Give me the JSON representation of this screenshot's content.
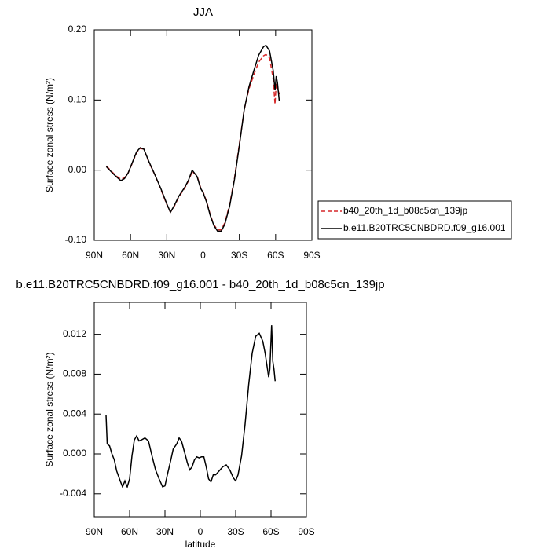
{
  "chart_data": [
    {
      "type": "line",
      "title": "JJA",
      "ylabel": "Surface zonal stress (N/m²)",
      "x": [
        80,
        75,
        72,
        68,
        65,
        62,
        58,
        55,
        52,
        49,
        45,
        40,
        35,
        30,
        27,
        24,
        20,
        15,
        12,
        9,
        5,
        2,
        0,
        -3,
        -6,
        -9,
        -12,
        -15,
        -18,
        -22,
        -26,
        -30,
        -34,
        -38,
        -42,
        -46,
        -50,
        -52,
        -55,
        -58,
        -59.5,
        -60.5,
        -61.5,
        -63
      ],
      "series": [
        {
          "name": "b40_20th_1d_b08c5cn_139jp",
          "color": "#d62728",
          "dash": true,
          "values": [
            0.006,
            -0.003,
            -0.008,
            -0.013,
            -0.011,
            -0.004,
            0.012,
            0.025,
            0.031,
            0.03,
            0.012,
            -0.006,
            -0.027,
            -0.049,
            -0.06,
            -0.052,
            -0.038,
            -0.025,
            -0.015,
            -0.002,
            -0.008,
            -0.025,
            -0.031,
            -0.045,
            -0.064,
            -0.078,
            -0.085,
            -0.085,
            -0.075,
            -0.049,
            -0.011,
            0.037,
            0.086,
            0.116,
            0.136,
            0.154,
            0.163,
            0.165,
            0.16,
            0.13,
            0.094,
            0.124,
            0.118,
            0.108
          ]
        },
        {
          "name": "b.e11.B20TRC5CNBDRD.f09_g16.001",
          "color": "#000000",
          "dash": false,
          "values": [
            0.005,
            -0.004,
            -0.009,
            -0.015,
            -0.012,
            -0.004,
            0.013,
            0.026,
            0.032,
            0.03,
            0.013,
            -0.006,
            -0.026,
            -0.048,
            -0.06,
            -0.051,
            -0.037,
            -0.024,
            -0.014,
            0.0,
            -0.009,
            -0.026,
            -0.032,
            -0.046,
            -0.065,
            -0.079,
            -0.087,
            -0.087,
            -0.077,
            -0.051,
            -0.013,
            0.035,
            0.086,
            0.119,
            0.142,
            0.164,
            0.176,
            0.178,
            0.17,
            0.142,
            0.114,
            0.134,
            0.125,
            0.099
          ]
        }
      ],
      "xlim": [
        90,
        -90
      ],
      "xticks": [
        {
          "value": 90,
          "label": "90N"
        },
        {
          "value": 60,
          "label": "60N"
        },
        {
          "value": 30,
          "label": "30N"
        },
        0,
        {
          "value": -30,
          "label": "30S"
        },
        {
          "value": -60,
          "label": "60S"
        },
        {
          "value": -90,
          "label": "90S"
        }
      ],
      "ylim": [
        -0.1,
        0.2
      ],
      "yticks": [
        {
          "value": 0.2,
          "label": "0.20"
        },
        {
          "value": 0.1,
          "label": "0.10"
        },
        {
          "value": 0,
          "label": "0.00"
        },
        {
          "value": -0.1,
          "label": "-0.10"
        }
      ],
      "legend": "outside-right"
    },
    {
      "type": "line",
      "title": "b.e11.B20TRC5CNBDRD.f09_g16.001 - b40_20th_1d_b08c5cn_139jp",
      "xlabel": "latitude",
      "ylabel": "Surface zonal stress (N/m²)",
      "x": [
        80,
        79,
        77,
        75,
        73,
        71,
        68,
        66,
        64,
        62,
        60,
        58,
        56,
        54,
        52,
        50,
        47,
        44,
        41,
        38,
        35,
        32,
        30,
        28,
        25,
        23,
        20,
        18,
        16,
        13,
        11,
        9,
        7,
        5,
        3,
        1,
        -1,
        -3,
        -5,
        -7,
        -9,
        -11,
        -13,
        -16,
        -19,
        -22,
        -25,
        -28,
        -30,
        -32,
        -35,
        -38,
        -41,
        -44,
        -47,
        -50,
        -53,
        -55,
        -57,
        -58,
        -59,
        -60.5,
        -61.5,
        -62.5,
        -63.5
      ],
      "series": [
        {
          "color": "#000000",
          "values": [
            0.0039,
            0.001,
            0.0008,
            0.0,
            -0.0006,
            -0.0017,
            -0.0027,
            -0.0033,
            -0.0027,
            -0.0033,
            -0.0025,
            -0.0002,
            0.0014,
            0.0018,
            0.0013,
            0.0014,
            0.0016,
            0.0013,
            -0.0002,
            -0.0016,
            -0.0025,
            -0.0033,
            -0.0032,
            -0.0021,
            -0.0006,
            0.0005,
            0.001,
            0.0016,
            0.0013,
            0.0,
            -0.0009,
            -0.0016,
            -0.0013,
            -0.0006,
            -0.0003,
            -0.0004,
            -0.0003,
            -0.0003,
            -0.0013,
            -0.0025,
            -0.0028,
            -0.0021,
            -0.0021,
            -0.0017,
            -0.0013,
            -0.0011,
            -0.0016,
            -0.0024,
            -0.0027,
            -0.0021,
            -0.0002,
            0.003,
            0.0069,
            0.0101,
            0.0118,
            0.0121,
            0.0113,
            0.0101,
            0.0085,
            0.0077,
            0.0085,
            0.0129,
            0.0093,
            0.0085,
            0.0073
          ]
        }
      ],
      "xlim": [
        90,
        -90
      ],
      "xticks": [
        {
          "value": 90,
          "label": "90N"
        },
        {
          "value": 60,
          "label": "60N"
        },
        {
          "value": 30,
          "label": "30N"
        },
        0,
        {
          "value": -30,
          "label": "30S"
        },
        {
          "value": -60,
          "label": "60S"
        },
        {
          "value": -90,
          "label": "90S"
        }
      ],
      "ylim": [
        -0.0063,
        0.0152
      ],
      "yticks": [
        0.012,
        0.008,
        0.004,
        {
          "value": 0,
          "label": "0.000"
        },
        -0.004
      ]
    }
  ]
}
